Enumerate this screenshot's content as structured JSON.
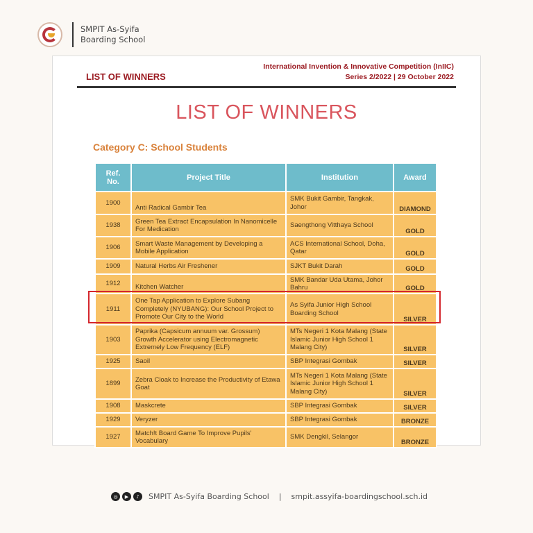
{
  "brand": {
    "line1": "SMPIT As-Syifa",
    "line2": "Boarding School"
  },
  "document": {
    "header_left": "LIST OF WINNERS",
    "header_right_line1": "International Invention & Innovative Competition (InIIC)",
    "header_right_line2": "Series 2/2022 | 29 October 2022",
    "title": "LIST OF WINNERS",
    "category": "Category C: School Students",
    "columns": [
      "Ref. No.",
      "Project Title",
      "Institution",
      "Award"
    ],
    "rows": [
      {
        "ref": "1900",
        "title": "Anti Radical Gambir Tea",
        "institution": "SMK Bukit Gambir, Tangkak, Johor",
        "award": "DIAMOND"
      },
      {
        "ref": "1938",
        "title": "Green Tea Extract Encapsulation In Nanomicelle For Medication",
        "institution": "Saengthong Vitthaya School",
        "award": "GOLD"
      },
      {
        "ref": "1906",
        "title": "Smart Waste Management by Developing a Mobile Application",
        "institution": "ACS International School, Doha, Qatar",
        "award": "GOLD"
      },
      {
        "ref": "1909",
        "title": "Natural Herbs Air Freshener",
        "institution": "SJKT Bukit Darah",
        "award": "GOLD"
      },
      {
        "ref": "1912",
        "title": "Kitchen Watcher",
        "institution": "SMK Bandar Uda Utama, Johor Bahru",
        "award": "GOLD"
      },
      {
        "ref": "1911",
        "title": "One Tap Application to Explore Subang Completely (NYUBANG): Our School Project to Promote Our City to the World",
        "institution": "As Syifa Junior High School Boarding School",
        "award": "SILVER"
      },
      {
        "ref": "1903",
        "title": "Paprika (Capsicum annuum var. Grossum) Growth Accelerator using Electromagnetic Extremely Low Frequency (ELF)",
        "institution": "MTs Negeri 1 Kota Malang (State Islamic Junior High School 1 Malang City)",
        "award": "SILVER"
      },
      {
        "ref": "1925",
        "title": "Saoil",
        "institution": "SBP Integrasi Gombak",
        "award": "SILVER"
      },
      {
        "ref": "1899",
        "title": "Zebra Cloak to Increase the Productivity of Etawa Goat",
        "institution": "MTs Negeri 1 Kota Malang (State Islamic Junior High School 1 Malang City)",
        "award": "SILVER"
      },
      {
        "ref": "1908",
        "title": "Maskcrete",
        "institution": "SBP Integrasi Gombak",
        "award": "SILVER"
      },
      {
        "ref": "1929",
        "title": "Veryzer",
        "institution": "SBP Integrasi Gombak",
        "award": "BRONZE"
      },
      {
        "ref": "1927",
        "title": "Match!t Board Game To Improve Pupils' Vocabulary",
        "institution": "SMK Dengkil, Selangor",
        "award": "BRONZE"
      }
    ],
    "highlighted_ref": "1911",
    "highlight_color": "#d4262c"
  },
  "footer": {
    "social_icons": [
      "instagram-icon",
      "youtube-icon",
      "tiktok-icon"
    ],
    "name": "SMPIT As-Syifa Boarding School",
    "separator": "|",
    "website": "smpit.assyifa-boardingschool.sch.id"
  }
}
